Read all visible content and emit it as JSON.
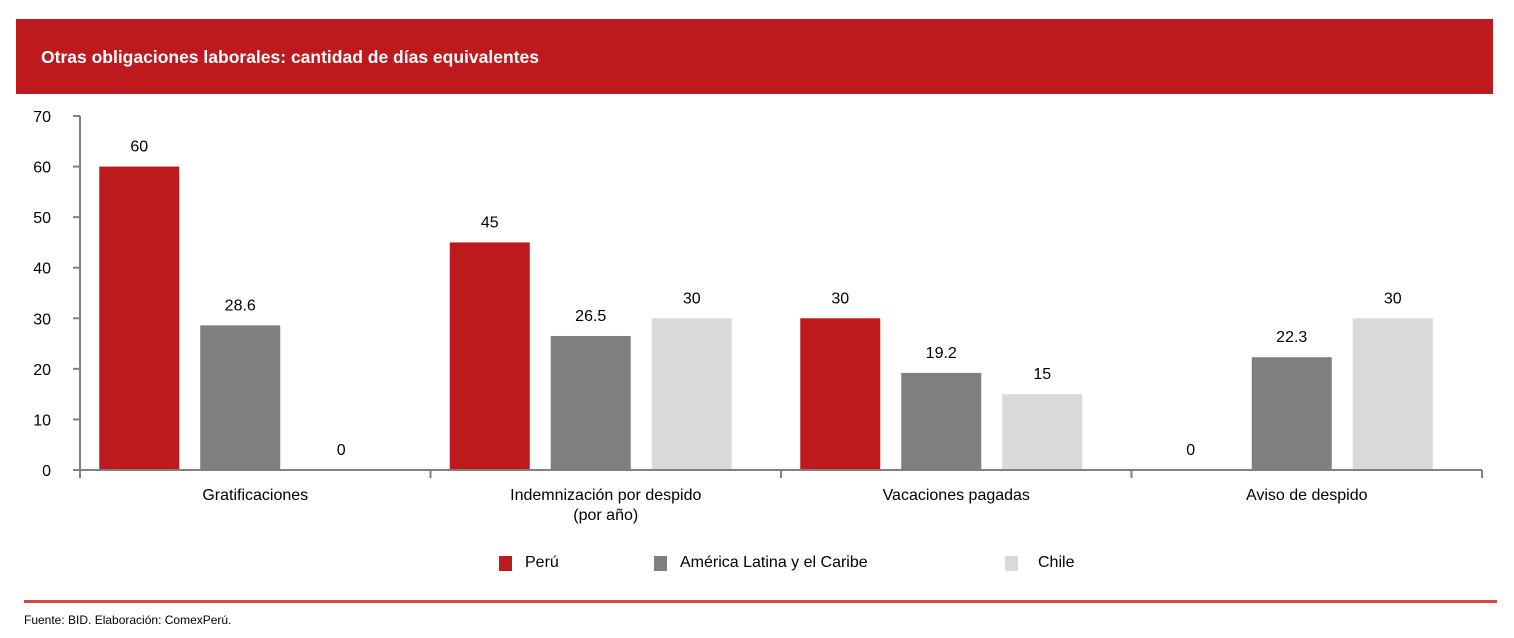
{
  "header": {
    "title": "Otras obligaciones laborales: cantidad de días equivalentes"
  },
  "colors": {
    "banner": "#be1a1d",
    "rule": "#d9434a",
    "axis": "#808080"
  },
  "chart_data": {
    "type": "bar",
    "title": "Otras obligaciones laborales: cantidad de días equivalentes",
    "xlabel": "",
    "ylabel": "",
    "ylim": [
      0,
      70
    ],
    "yticks": [
      0,
      10,
      20,
      30,
      40,
      50,
      60,
      70
    ],
    "ytick_labels": [
      "0",
      "10",
      "20",
      "30",
      "40",
      "50",
      "60",
      "70"
    ],
    "grid": false,
    "legend_position": "bottom",
    "categories": [
      [
        "Gratificaciones"
      ],
      [
        "Indemnización por despido",
        "(por año)"
      ],
      [
        "Vacaciones pagadas"
      ],
      [
        "Aviso de despido"
      ]
    ],
    "series": [
      {
        "name": "Perú",
        "color": "#be1a1d",
        "values": [
          60,
          45,
          30,
          0
        ],
        "labels": [
          "60",
          "45",
          "30",
          "0"
        ]
      },
      {
        "name": "América Latina y el Caribe",
        "color": "#7f7f7f",
        "values": [
          28.6,
          26.5,
          19.2,
          22.3
        ],
        "labels": [
          "28.6",
          "26.5",
          "19.2",
          "22.3"
        ]
      },
      {
        "name": "Chile",
        "color": "#d9d9d9",
        "values": [
          0,
          30,
          15,
          30
        ],
        "labels": [
          "0",
          "30",
          "15",
          "30"
        ]
      }
    ]
  },
  "footer": {
    "source": "Fuente: BID. Elaboración: ComexPerú."
  }
}
